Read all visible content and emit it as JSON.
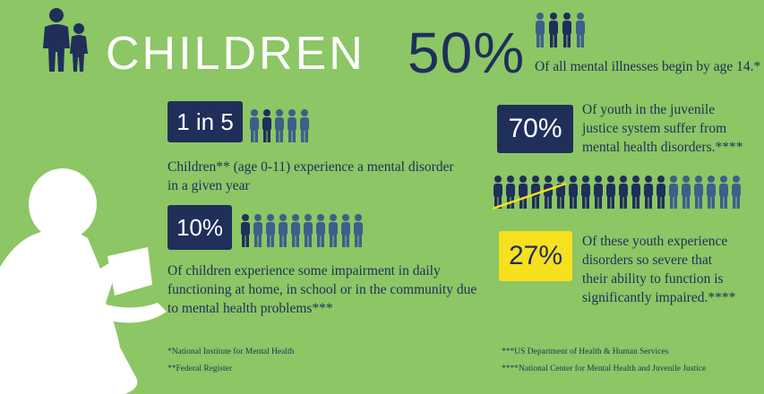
{
  "title": "CHILDREN",
  "headline": {
    "percent": "50%",
    "caption": "Of all mental illnesses begin by age 14.*"
  },
  "stats": {
    "one_in_five": {
      "value": "1 in 5",
      "text_line1": "Children** (age 0-11) experience a mental disorder",
      "text_line2": "in a given year"
    },
    "ten_percent": {
      "value": "10%",
      "text_line1": "Of children experience some impairment in daily",
      "text_line2": "functioning at home, in school or in the community due",
      "text_line3": "to mental health problems***"
    },
    "seventy_percent": {
      "value": "70%",
      "text_line1": "Of youth in the juvenile",
      "text_line2": "justice system suffer from",
      "text_line3": "mental health disorders.****"
    },
    "twenty_seven_percent": {
      "value": "27%",
      "text_line1": "Of these youth experience",
      "text_line2": "disorders so severe that",
      "text_line3": "their ability to function is",
      "text_line4": "significantly impaired.****"
    }
  },
  "footnotes": {
    "left1": "*National Institute for Mental Health",
    "left2": "**Federal Register",
    "right1": "***US Department of Health & Human Services",
    "right2": "****National Center for Mental Health and Juvenile Justice"
  },
  "colors": {
    "background": "#8cc665",
    "navy": "#1f2f5a",
    "figure_light": "#3d5f8a",
    "yellow": "#f7e01d",
    "white": "#ffffff"
  },
  "icons": {
    "family": "parent-child-icon",
    "person": "person-icon",
    "reader": "child-reading-silhouette"
  }
}
